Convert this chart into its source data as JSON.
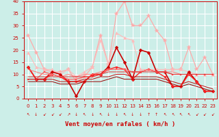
{
  "xlabel": "Vent moyen/en rafales ( km/h )",
  "xlim": [
    -0.5,
    23.5
  ],
  "ylim": [
    0,
    40
  ],
  "yticks": [
    0,
    5,
    10,
    15,
    20,
    25,
    30,
    35,
    40
  ],
  "xticks": [
    0,
    1,
    2,
    3,
    4,
    5,
    6,
    7,
    8,
    9,
    10,
    11,
    12,
    13,
    14,
    15,
    16,
    17,
    18,
    19,
    20,
    21,
    22,
    23
  ],
  "background_color": "#cceee8",
  "grid_color": "#ffffff",
  "series": [
    {
      "y": [
        26,
        19,
        12,
        11,
        11,
        12,
        7,
        9,
        13,
        26,
        14,
        35,
        40,
        30,
        30,
        34,
        28,
        24,
        12,
        12,
        21,
        12,
        17,
        10
      ],
      "color": "#ffaaaa",
      "marker": "*",
      "lw": 0.9,
      "ms": 4
    },
    {
      "y": [
        19,
        13,
        12,
        12,
        10,
        12,
        9,
        11,
        13,
        24,
        14,
        27,
        25,
        24,
        12,
        12,
        12,
        12,
        12,
        12,
        11,
        10,
        10,
        10
      ],
      "color": "#ffbbbb",
      "marker": "^",
      "lw": 0.8,
      "ms": 3
    },
    {
      "y": [
        13,
        8,
        8,
        11,
        10,
        7,
        1,
        7,
        10,
        10,
        13,
        21,
        15,
        8,
        20,
        19,
        11,
        11,
        5,
        5,
        11,
        7,
        3,
        3
      ],
      "color": "#cc0000",
      "marker": "D",
      "lw": 1.2,
      "ms": 2.5
    },
    {
      "y": [
        13,
        8,
        8,
        10,
        9,
        7,
        7,
        7,
        10,
        10,
        12,
        13,
        12,
        8,
        11,
        12,
        11,
        9,
        5,
        5,
        10,
        7,
        3,
        3
      ],
      "color": "#ff2222",
      "marker": "o",
      "lw": 1.0,
      "ms": 2
    },
    {
      "y": [
        8,
        8,
        11,
        10,
        9,
        8,
        8,
        9,
        9,
        10,
        12,
        12,
        12,
        11,
        11,
        12,
        11,
        11,
        10,
        10,
        10,
        10,
        10,
        10
      ],
      "color": "#ff5555",
      "marker": "s",
      "lw": 0.8,
      "ms": 1.5
    },
    {
      "y": [
        12,
        11,
        10,
        10,
        9,
        10,
        9,
        10,
        10,
        11,
        12,
        12,
        12,
        11,
        11,
        12,
        11,
        11,
        11,
        10,
        10,
        10,
        10,
        10
      ],
      "color": "#ff7777",
      "marker": null,
      "lw": 0.7,
      "ms": 0
    },
    {
      "y": [
        9,
        9,
        9,
        9,
        9,
        9,
        9,
        9,
        9,
        10,
        11,
        11,
        11,
        11,
        11,
        11,
        11,
        11,
        10,
        10,
        10,
        10,
        10,
        10
      ],
      "color": "#dd3333",
      "marker": null,
      "lw": 0.7,
      "ms": 0
    },
    {
      "y": [
        8,
        8,
        8,
        8,
        7,
        7,
        7,
        8,
        8,
        9,
        9,
        10,
        10,
        9,
        9,
        9,
        9,
        8,
        7,
        6,
        7,
        6,
        5,
        4
      ],
      "color": "#bb1111",
      "marker": null,
      "lw": 0.7,
      "ms": 0
    },
    {
      "y": [
        7,
        7,
        7,
        7,
        6,
        6,
        6,
        7,
        7,
        7,
        8,
        9,
        8,
        8,
        8,
        8,
        8,
        7,
        6,
        5,
        6,
        5,
        4,
        3
      ],
      "color": "#990000",
      "marker": null,
      "lw": 0.7,
      "ms": 0
    }
  ],
  "wind_arrows": [
    "↖",
    "↓",
    "↙",
    "↙",
    "↙",
    "↗",
    "↓",
    "↖",
    "↓",
    "↖",
    "↓",
    "↓",
    "↖",
    "↓",
    "↓",
    "↑",
    "↑",
    "↖",
    "↖",
    "↖",
    "↖",
    "↙",
    "↙",
    "↙"
  ],
  "font_color": "#cc0000",
  "tick_fontsize": 5,
  "xlabel_fontsize": 6.5
}
